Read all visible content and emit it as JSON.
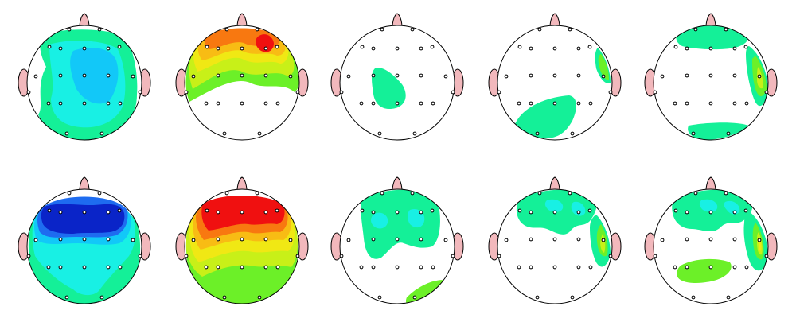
{
  "figure": {
    "background": "#ffffff",
    "outline_color": "#000000",
    "ear_color": "#f2b8bc",
    "electrode_color": "#000000"
  },
  "colors": {
    "dark_blue": "#0a24c8",
    "blue": "#1e6cf0",
    "light_blue": "#12c8f8",
    "cyan": "#18f0e4",
    "mint": "#14f098",
    "green": "#6cf028",
    "yellow_green": "#c8f018",
    "yellow": "#f0e814",
    "orange_yellow": "#f8bc14",
    "orange": "#f87810",
    "red": "#f01010"
  },
  "maps": [
    {
      "name": "map-row1-col1",
      "row": 1,
      "col": 1,
      "levels": [
        "mint",
        "cyan",
        "light_blue"
      ]
    },
    {
      "name": "map-row1-col2",
      "row": 1,
      "col": 2,
      "levels": [
        "green",
        "yellow_green",
        "yellow",
        "orange_yellow",
        "orange",
        "red"
      ]
    },
    {
      "name": "map-row1-col3",
      "row": 1,
      "col": 3,
      "levels": [
        "mint"
      ]
    },
    {
      "name": "map-row1-col4",
      "row": 1,
      "col": 4,
      "levels": [
        "mint",
        "green"
      ]
    },
    {
      "name": "map-row1-col5",
      "row": 1,
      "col": 5,
      "levels": [
        "mint",
        "green",
        "yellow_green"
      ]
    },
    {
      "name": "map-row2-col1",
      "row": 2,
      "col": 1,
      "levels": [
        "mint",
        "cyan",
        "light_blue",
        "blue",
        "dark_blue"
      ]
    },
    {
      "name": "map-row2-col2",
      "row": 2,
      "col": 2,
      "levels": [
        "green",
        "yellow_green",
        "yellow",
        "orange_yellow",
        "orange",
        "red"
      ]
    },
    {
      "name": "map-row2-col3",
      "row": 2,
      "col": 3,
      "levels": [
        "mint",
        "cyan",
        "green"
      ]
    },
    {
      "name": "map-row2-col4",
      "row": 2,
      "col": 4,
      "levels": [
        "mint",
        "cyan",
        "green",
        "yellow_green"
      ]
    },
    {
      "name": "map-row2-col5",
      "row": 2,
      "col": 5,
      "levels": [
        "mint",
        "cyan",
        "green",
        "yellow_green",
        "yellow"
      ]
    }
  ]
}
